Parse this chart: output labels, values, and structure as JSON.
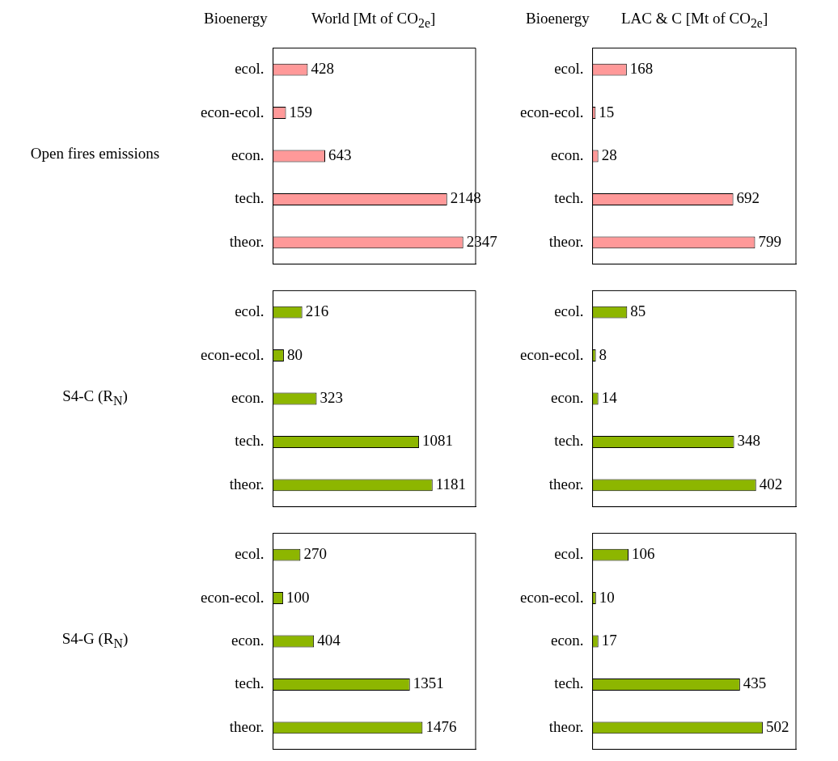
{
  "chart_data": [
    {
      "type": "bar",
      "orientation": "horizontal",
      "title": "World [Mt of CO$_{2e}$]",
      "annotations": [
        "Bioenergy"
      ],
      "ylabel": "Open fires emissions",
      "categories": [
        "ecol.",
        "econ-ecol.",
        "econ.",
        "tech.",
        "theor."
      ],
      "values": [
        428,
        159,
        643,
        2148,
        2347
      ],
      "color": "#ff9999",
      "data_labels": true,
      "tick_labels": "y"
    },
    {
      "type": "bar",
      "orientation": "horizontal",
      "title": "LAC & C [Mt of CO$_{2e}$]",
      "annotations": [
        "Bioenergy"
      ],
      "categories": [
        "ecol.",
        "econ-ecol.",
        "econ.",
        "tech.",
        "theor."
      ],
      "values": [
        168,
        15,
        28,
        692,
        799
      ],
      "color": "#ff9999",
      "data_labels": true,
      "tick_labels": "y"
    },
    {
      "type": "bar",
      "orientation": "horizontal",
      "ylabel": "S4-C (R$_{N}$)",
      "categories": [
        "ecol.",
        "econ-ecol.",
        "econ.",
        "tech.",
        "theor."
      ],
      "values": [
        216,
        80,
        323,
        1081,
        1181
      ],
      "color": "#8db600",
      "data_labels": true,
      "tick_labels": "y"
    },
    {
      "type": "bar",
      "orientation": "horizontal",
      "categories": [
        "ecol.",
        "econ-ecol.",
        "econ.",
        "tech.",
        "theor."
      ],
      "values": [
        85,
        8,
        14,
        348,
        402
      ],
      "color": "#8db600",
      "data_labels": true,
      "tick_labels": "y"
    },
    {
      "type": "bar",
      "orientation": "horizontal",
      "ylabel": "S4-G (R$_{N}$)",
      "categories": [
        "ecol.",
        "econ-ecol.",
        "econ.",
        "tech.",
        "theor."
      ],
      "values": [
        270,
        100,
        404,
        1351,
        1476
      ],
      "color": "#8db600",
      "data_labels": true,
      "tick_labels": "y"
    },
    {
      "type": "bar",
      "orientation": "horizontal",
      "categories": [
        "ecol.",
        "econ-ecol.",
        "econ.",
        "tech.",
        "theor."
      ],
      "values": [
        106,
        10,
        17,
        435,
        502
      ],
      "color": "#8db600",
      "data_labels": true,
      "tick_labels": "y"
    }
  ]
}
